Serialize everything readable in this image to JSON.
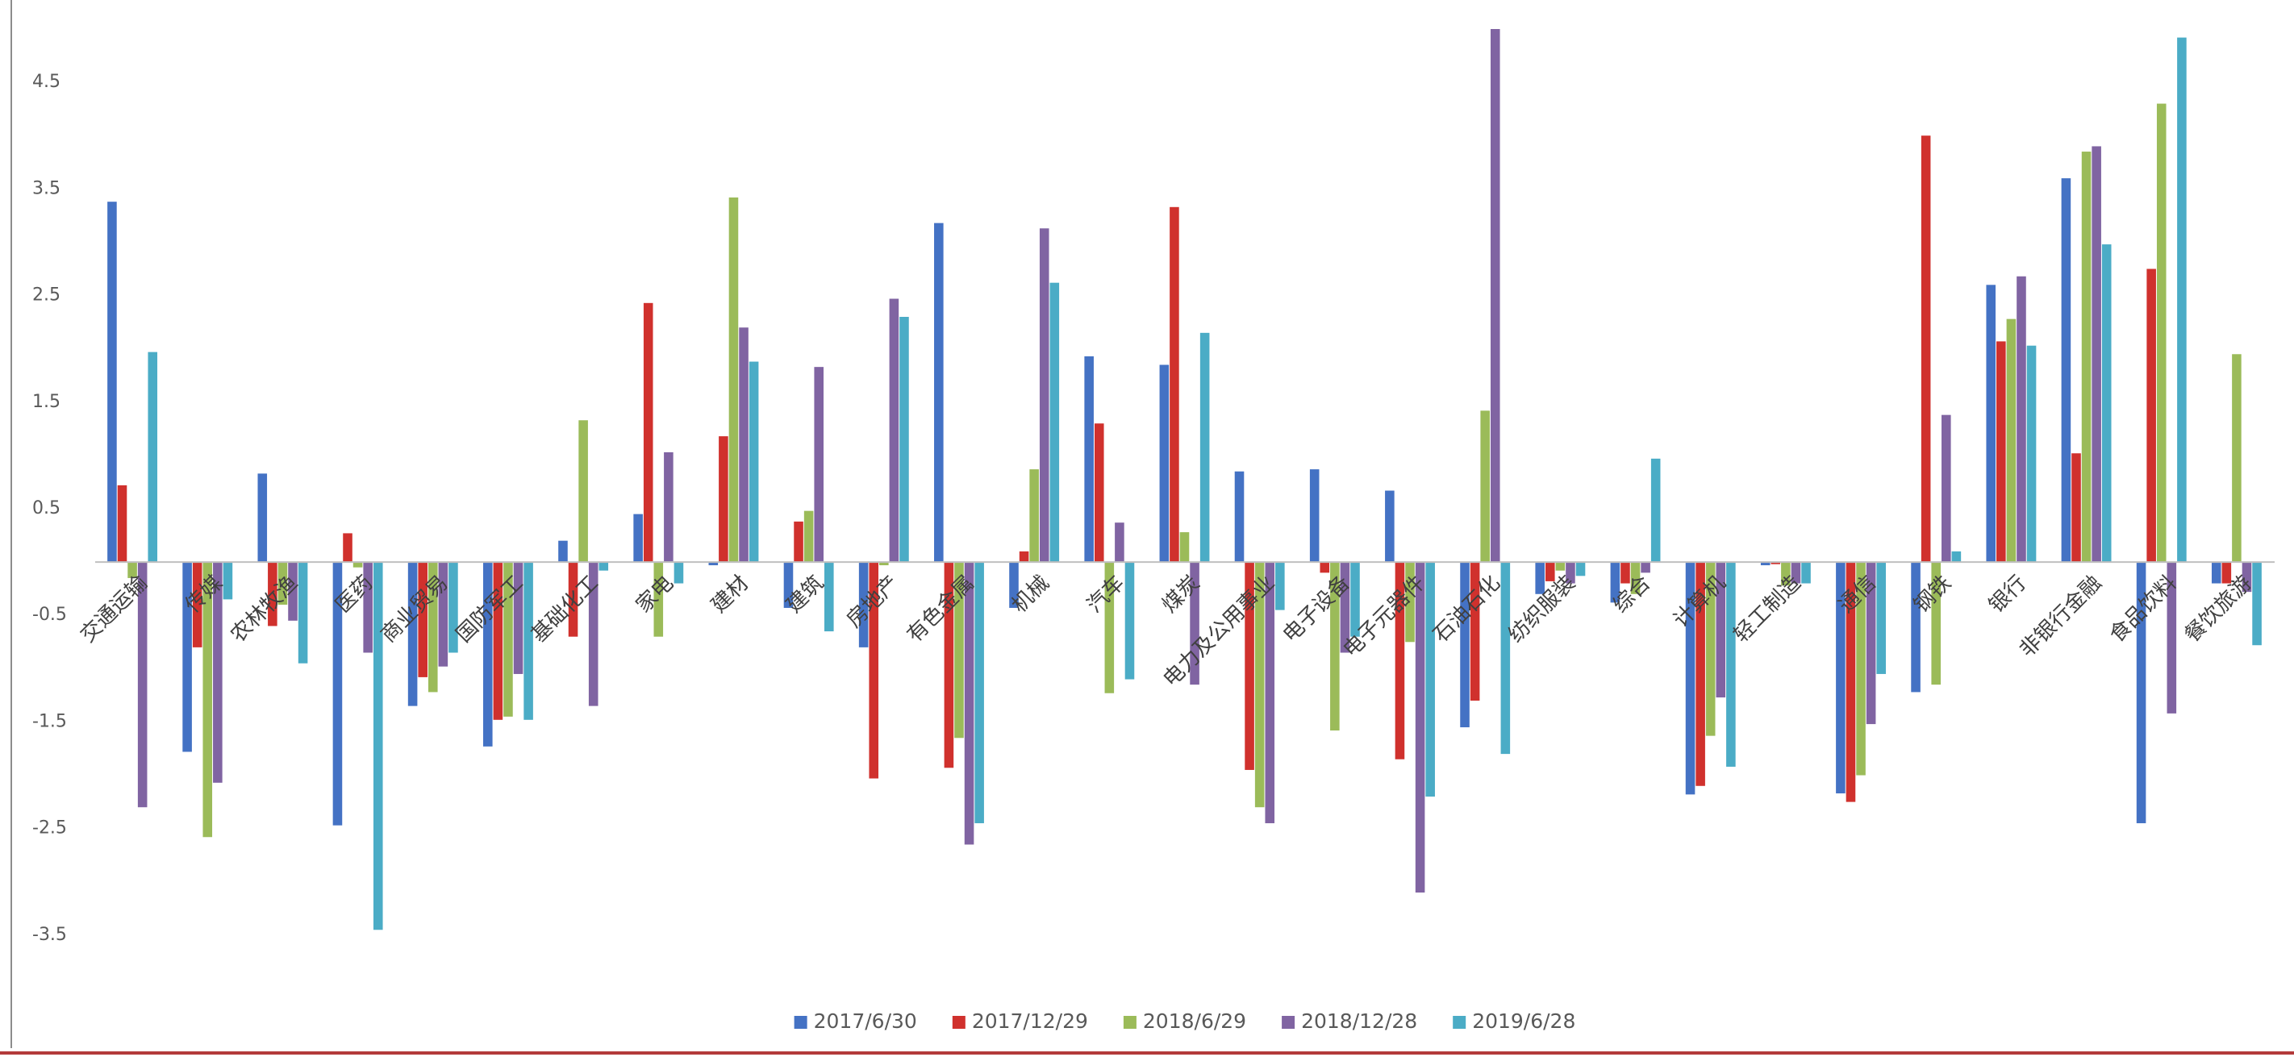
{
  "chart_data": {
    "type": "bar",
    "categories": [
      "交通运输",
      "传媒",
      "农林牧渔",
      "医药",
      "商业贸易",
      "国防军工",
      "基础化工",
      "家电",
      "建材",
      "建筑",
      "房地产",
      "有色金属",
      "机械",
      "汽车",
      "煤炭",
      "电力及公用事业",
      "电子设备",
      "电子元器件",
      "石油石化",
      "纺织服装",
      "综合",
      "计算机",
      "轻工制造",
      "通信",
      "钢铁",
      "银行",
      "非银行金融",
      "食品饮料",
      "餐饮旅游"
    ],
    "series": [
      {
        "name": "2017/6/30",
        "color": "#4472c4",
        "values": [
          3.38,
          -1.78,
          0.83,
          -2.47,
          -1.35,
          -1.73,
          0.2,
          0.45,
          -0.03,
          -0.43,
          -0.8,
          3.18,
          -0.43,
          1.93,
          1.85,
          0.85,
          0.87,
          0.67,
          -1.55,
          -0.3,
          -0.38,
          -2.18,
          -0.03,
          -2.17,
          -1.22,
          2.6,
          3.6,
          -2.45,
          -0.2
        ]
      },
      {
        "name": "2017/12/29",
        "color": "#d0312d",
        "values": [
          0.72,
          -0.8,
          -0.6,
          0.27,
          -1.08,
          -1.48,
          -0.7,
          2.43,
          1.18,
          0.38,
          -2.03,
          -1.93,
          0.1,
          1.3,
          3.33,
          -1.95,
          -0.1,
          -1.85,
          -1.3,
          -0.18,
          -0.2,
          -2.1,
          -0.02,
          -2.25,
          4.0,
          2.07,
          1.02,
          2.75,
          -0.2
        ]
      },
      {
        "name": "2018/6/29",
        "color": "#9bbb59",
        "values": [
          -0.15,
          -2.58,
          -0.4,
          -0.05,
          -1.22,
          -1.45,
          1.33,
          -0.7,
          3.42,
          0.48,
          -0.03,
          -1.65,
          0.87,
          -1.23,
          0.28,
          -2.3,
          -1.58,
          -0.75,
          1.42,
          -0.08,
          -0.3,
          -1.63,
          -0.22,
          -2.0,
          -1.15,
          2.28,
          3.85,
          4.3,
          1.95
        ]
      },
      {
        "name": "2018/12/28",
        "color": "#8064a2",
        "values": [
          -2.3,
          -2.07,
          -0.55,
          -0.85,
          -0.98,
          -1.05,
          -1.35,
          1.03,
          2.2,
          1.83,
          2.47,
          -2.65,
          3.13,
          0.37,
          -1.15,
          -2.45,
          -0.85,
          -3.1,
          5.0,
          -0.2,
          -0.1,
          -1.27,
          -0.2,
          -1.52,
          1.38,
          2.68,
          3.9,
          -1.42,
          -0.28
        ]
      },
      {
        "name": "2019/6/28",
        "color": "#4bacc6",
        "values": [
          1.97,
          -0.35,
          -0.95,
          -3.45,
          -0.85,
          -1.48,
          -0.08,
          -0.2,
          1.88,
          -0.65,
          2.3,
          -2.45,
          2.62,
          -1.1,
          2.15,
          -0.45,
          -0.7,
          -2.2,
          -1.8,
          -0.13,
          0.97,
          -1.92,
          -0.2,
          -1.05,
          0.1,
          2.03,
          2.98,
          4.92,
          -0.78
        ]
      }
    ],
    "ylim": [
      -4,
      5
    ],
    "yticks": [
      -3.5,
      -2.5,
      -1.5,
      -0.5,
      0.5,
      1.5,
      2.5,
      3.5,
      4.5
    ],
    "grid": false,
    "legend": "bottom"
  }
}
